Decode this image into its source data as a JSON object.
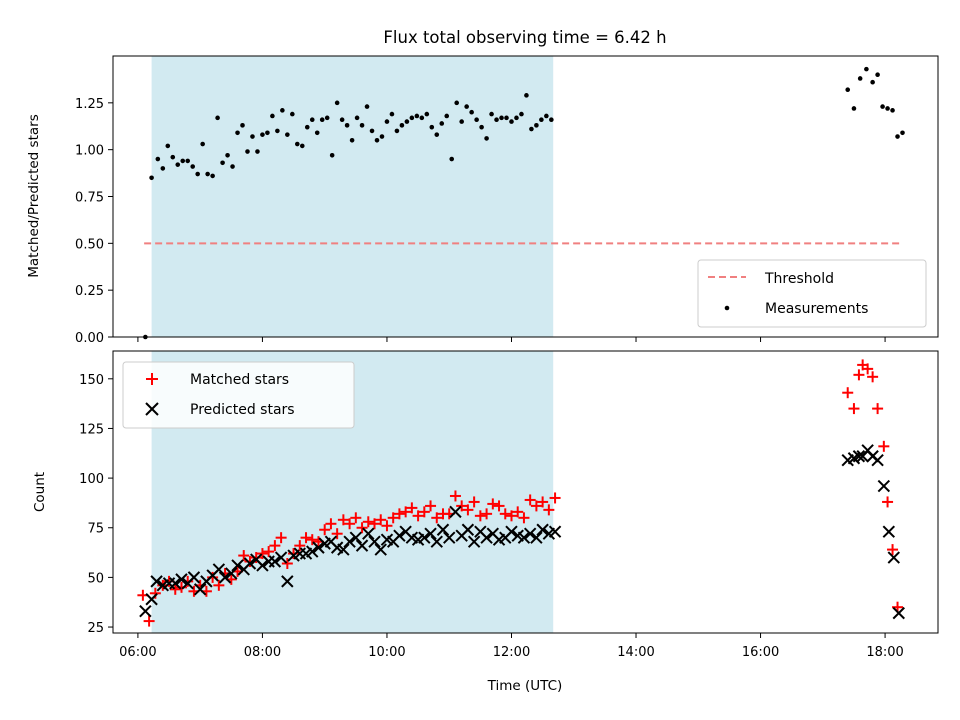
{
  "chart_data": {
    "type": "scatter",
    "title": "Flux total observing time = 6.42 h",
    "xlabel": "Time (UTC)",
    "x_ticks": [
      "06:00",
      "08:00",
      "10:00",
      "12:00",
      "14:00",
      "16:00",
      "18:00"
    ],
    "xlim_hours": [
      5.6,
      18.85
    ],
    "shaded_interval_hours": [
      6.22,
      12.67
    ],
    "shade_color": "#add8e6",
    "panels": [
      {
        "ylabel": "Matched/Predicted stars",
        "ylim": [
          0,
          1.5
        ],
        "y_ticks": [
          "0.00",
          "0.25",
          "0.50",
          "0.75",
          "1.00",
          "1.25"
        ],
        "legend_position": "lower-right",
        "threshold": {
          "name": "Threshold",
          "value": 0.5,
          "x_range": [
            6.1,
            18.25
          ],
          "color": "#f08080"
        },
        "series": [
          {
            "name": "Measurements",
            "marker": "dot",
            "color": "#000000",
            "x": [
              6.12,
              6.22,
              6.32,
              6.4,
              6.48,
              6.56,
              6.64,
              6.72,
              6.8,
              6.88,
              6.96,
              7.04,
              7.12,
              7.2,
              7.28,
              7.36,
              7.44,
              7.52,
              7.6,
              7.68,
              7.76,
              7.84,
              7.92,
              8.0,
              8.08,
              8.16,
              8.24,
              8.32,
              8.4,
              8.48,
              8.56,
              8.64,
              8.72,
              8.8,
              8.88,
              8.96,
              9.04,
              9.12,
              9.2,
              9.28,
              9.36,
              9.44,
              9.52,
              9.6,
              9.68,
              9.76,
              9.84,
              9.92,
              10.0,
              10.08,
              10.16,
              10.24,
              10.32,
              10.4,
              10.48,
              10.56,
              10.64,
              10.72,
              10.8,
              10.88,
              10.96,
              11.04,
              11.12,
              11.2,
              11.28,
              11.36,
              11.44,
              11.52,
              11.6,
              11.68,
              11.76,
              11.84,
              11.92,
              12.0,
              12.08,
              12.16,
              12.24,
              12.32,
              12.4,
              12.48,
              12.56,
              12.64,
              17.4,
              17.5,
              17.6,
              17.7,
              17.8,
              17.88,
              17.96,
              18.04,
              18.12,
              18.2,
              18.28
            ],
            "y": [
              0.0,
              0.85,
              0.95,
              0.9,
              1.02,
              0.96,
              0.92,
              0.94,
              0.94,
              0.91,
              0.87,
              1.03,
              0.87,
              0.86,
              1.17,
              0.93,
              0.97,
              0.91,
              1.09,
              1.13,
              0.99,
              1.07,
              0.99,
              1.08,
              1.09,
              1.18,
              1.1,
              1.21,
              1.08,
              1.19,
              1.03,
              1.02,
              1.12,
              1.16,
              1.09,
              1.16,
              1.17,
              0.97,
              1.25,
              1.16,
              1.13,
              1.05,
              1.17,
              1.13,
              1.23,
              1.1,
              1.05,
              1.07,
              1.15,
              1.19,
              1.1,
              1.13,
              1.15,
              1.17,
              1.18,
              1.17,
              1.19,
              1.12,
              1.08,
              1.14,
              1.18,
              0.95,
              1.25,
              1.15,
              1.23,
              1.2,
              1.16,
              1.12,
              1.06,
              1.19,
              1.16,
              1.17,
              1.17,
              1.15,
              1.17,
              1.19,
              1.29,
              1.11,
              1.13,
              1.16,
              1.18,
              1.16,
              1.32,
              1.22,
              1.38,
              1.43,
              1.36,
              1.4,
              1.23,
              1.22,
              1.21,
              1.07,
              1.09
            ]
          }
        ]
      },
      {
        "ylabel": "Count",
        "ylim": [
          22,
          164
        ],
        "y_ticks": [
          "25",
          "50",
          "75",
          "100",
          "125",
          "150"
        ],
        "legend_position": "upper-left",
        "series": [
          {
            "name": "Matched stars",
            "marker": "plus",
            "color": "#ff0000",
            "x": [
              6.08,
              6.18,
              6.28,
              6.4,
              6.5,
              6.6,
              6.7,
              6.8,
              6.9,
              7.0,
              7.1,
              7.2,
              7.3,
              7.4,
              7.5,
              7.6,
              7.7,
              7.8,
              7.9,
              8.0,
              8.1,
              8.2,
              8.3,
              8.4,
              8.5,
              8.6,
              8.7,
              8.8,
              8.9,
              9.0,
              9.1,
              9.2,
              9.3,
              9.4,
              9.5,
              9.6,
              9.7,
              9.8,
              9.9,
              10.0,
              10.1,
              10.2,
              10.3,
              10.4,
              10.5,
              10.6,
              10.7,
              10.8,
              10.9,
              11.0,
              11.1,
              11.2,
              11.3,
              11.4,
              11.5,
              11.6,
              11.7,
              11.8,
              11.9,
              12.0,
              12.1,
              12.2,
              12.3,
              12.4,
              12.5,
              12.6,
              12.7,
              17.4,
              17.5,
              17.58,
              17.64,
              17.72,
              17.8,
              17.88,
              17.98,
              18.04,
              18.12,
              18.2
            ],
            "y": [
              41,
              28,
              42,
              46,
              48,
              44,
              45,
              48,
              43,
              46,
              43,
              50,
              46,
              52,
              49,
              53,
              61,
              58,
              60,
              62,
              63,
              66,
              70,
              57,
              62,
              66,
              70,
              69,
              68,
              74,
              77,
              72,
              79,
              77,
              80,
              75,
              78,
              77,
              79,
              76,
              80,
              82,
              83,
              85,
              81,
              83,
              86,
              80,
              82,
              82,
              91,
              86,
              84,
              88,
              81,
              82,
              87,
              86,
              82,
              81,
              83,
              80,
              89,
              86,
              88,
              84,
              90,
              143,
              135,
              152,
              157,
              155,
              151,
              135,
              116,
              88,
              64,
              35
            ]
          },
          {
            "name": "Predicted stars",
            "marker": "x",
            "color": "#000000",
            "x": [
              6.12,
              6.22,
              6.3,
              6.4,
              6.5,
              6.6,
              6.7,
              6.8,
              6.9,
              7.0,
              7.1,
              7.2,
              7.3,
              7.4,
              7.5,
              7.6,
              7.7,
              7.8,
              7.9,
              8.0,
              8.1,
              8.2,
              8.3,
              8.4,
              8.5,
              8.6,
              8.7,
              8.8,
              8.9,
              9.0,
              9.1,
              9.2,
              9.3,
              9.4,
              9.5,
              9.6,
              9.7,
              9.8,
              9.9,
              10.0,
              10.1,
              10.2,
              10.3,
              10.4,
              10.5,
              10.6,
              10.7,
              10.8,
              10.9,
              11.0,
              11.1,
              11.2,
              11.3,
              11.4,
              11.5,
              11.6,
              11.7,
              11.8,
              11.9,
              12.0,
              12.1,
              12.2,
              12.3,
              12.4,
              12.5,
              12.6,
              12.7,
              17.4,
              17.5,
              17.58,
              17.64,
              17.72,
              17.8,
              17.88,
              17.98,
              18.06,
              18.14,
              18.22
            ],
            "y": [
              33,
              39,
              48,
              46,
              47,
              47,
              49,
              47,
              50,
              44,
              48,
              51,
              54,
              50,
              52,
              56,
              54,
              57,
              59,
              56,
              58,
              58,
              60,
              48,
              61,
              62,
              62,
              63,
              65,
              67,
              68,
              65,
              64,
              68,
              70,
              66,
              72,
              68,
              64,
              69,
              68,
              71,
              73,
              70,
              69,
              70,
              72,
              68,
              74,
              70,
              83,
              71,
              74,
              68,
              73,
              70,
              72,
              69,
              70,
              73,
              71,
              70,
              72,
              70,
              74,
              72,
              73,
              109,
              110,
              111,
              111,
              114,
              111,
              109,
              96,
              73,
              60,
              32
            ]
          }
        ]
      }
    ]
  }
}
